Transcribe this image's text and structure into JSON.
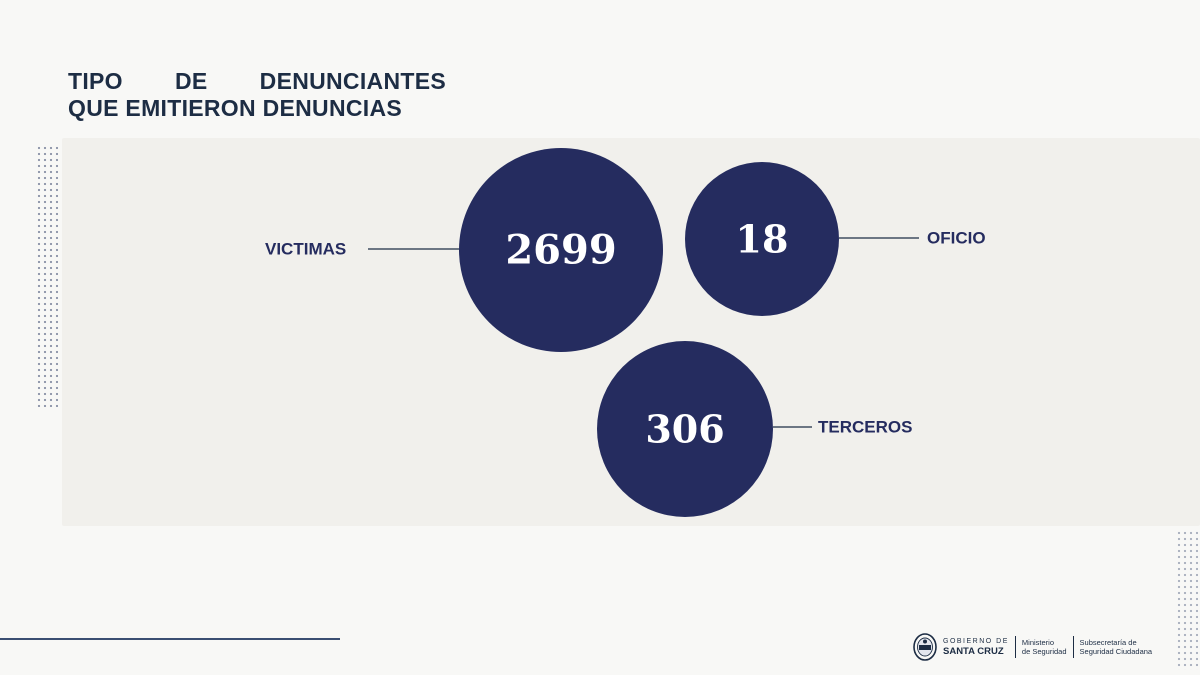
{
  "title": {
    "line1_words": [
      "TIPO",
      "DE",
      "DENUNCIANTES"
    ],
    "line2": "QUE EMITIERON DENUNCIAS"
  },
  "chart_data": {
    "type": "bubble",
    "title": "TIPO DE DENUNCIANTES QUE EMITIERON DENUNCIAS",
    "series": [
      {
        "label": "VICTIMAS",
        "value": 2699
      },
      {
        "label": "OFICIO",
        "value": 18
      },
      {
        "label": "TERCEROS",
        "value": 306
      }
    ]
  },
  "colors": {
    "bubble": "#252c5f",
    "label": "#252c5f",
    "title": "#1d2d44",
    "panel": "#f1f0ec"
  },
  "footer": {
    "gobierno_line1": "GOBIERNO DE",
    "gobierno_line2": "SANTA CRUZ",
    "ministerio": [
      "Ministerio",
      "de Seguridad"
    ],
    "subsecretaria": [
      "Subsecretaría de",
      "Seguridad Ciudadana"
    ]
  }
}
